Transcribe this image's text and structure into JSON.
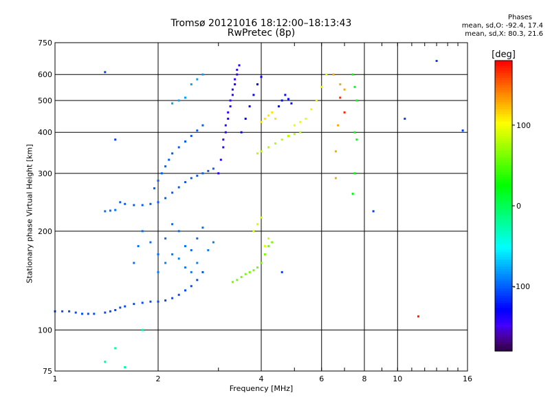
{
  "title_line1": "Tromsø 20121016 18:12:00–18:13:43",
  "title_line2": "RwPretec (8p)",
  "stats": {
    "heading": "Phases",
    "o_line": "mean, sd,O: -92.4, 17.4",
    "x_line": "mean, sd,X:  80.3, 21.6"
  },
  "colors": {
    "grid": "#000000",
    "frame": "#000000"
  },
  "chart_data": {
    "type": "scatter",
    "xlabel": "Frequency [MHz]",
    "ylabel": "Stationary phase Virtual Height [km]",
    "x_scale": "log2",
    "y_scale": "log",
    "xlim": [
      1,
      16
    ],
    "ylim": [
      75,
      750
    ],
    "x_ticks": [
      1,
      2,
      4,
      6,
      8,
      10,
      16
    ],
    "x_tick_labels": [
      "1",
      "2",
      "4",
      "6",
      "8",
      "10",
      "16"
    ],
    "y_ticks": [
      75,
      100,
      200,
      300,
      400,
      500,
      600,
      750
    ],
    "y_tick_labels": [
      "75",
      "100",
      "200",
      "300",
      "400",
      "500",
      "600",
      "750"
    ],
    "colorbar": {
      "label": "[deg]",
      "range": [
        -180,
        180
      ],
      "ticks": [
        -100,
        0,
        100
      ],
      "tick_labels": [
        "-100",
        "0",
        "100"
      ]
    },
    "series": [
      {
        "phase": -105,
        "points": [
          [
            1.0,
            114
          ],
          [
            1.05,
            114
          ],
          [
            1.1,
            114
          ],
          [
            1.15,
            113
          ],
          [
            1.2,
            112
          ],
          [
            1.25,
            112
          ],
          [
            1.3,
            112
          ],
          [
            1.4,
            113
          ],
          [
            1.45,
            114
          ],
          [
            1.5,
            115
          ],
          [
            1.55,
            117
          ],
          [
            1.6,
            118
          ],
          [
            1.7,
            120
          ],
          [
            1.8,
            121
          ],
          [
            1.9,
            122
          ],
          [
            2.0,
            122
          ],
          [
            2.1,
            123
          ],
          [
            2.2,
            125
          ],
          [
            2.3,
            128
          ],
          [
            2.4,
            132
          ],
          [
            2.5,
            136
          ],
          [
            2.6,
            142
          ],
          [
            2.7,
            150
          ]
        ]
      },
      {
        "phase": -100,
        "points": [
          [
            1.55,
            245
          ],
          [
            1.6,
            242
          ],
          [
            1.7,
            240
          ],
          [
            1.8,
            240
          ],
          [
            1.9,
            242
          ],
          [
            2.0,
            245
          ],
          [
            2.1,
            252
          ],
          [
            2.2,
            262
          ],
          [
            2.3,
            272
          ],
          [
            2.4,
            282
          ],
          [
            2.5,
            290
          ],
          [
            2.6,
            295
          ],
          [
            2.7,
            300
          ],
          [
            2.8,
            305
          ],
          [
            2.9,
            310
          ]
        ]
      },
      {
        "phase": -100,
        "points": [
          [
            1.95,
            270
          ],
          [
            2.0,
            285
          ],
          [
            2.05,
            300
          ],
          [
            2.1,
            315
          ],
          [
            2.15,
            330
          ],
          [
            2.2,
            345
          ],
          [
            2.3,
            360
          ],
          [
            2.4,
            375
          ],
          [
            2.5,
            390
          ],
          [
            2.6,
            405
          ],
          [
            2.7,
            420
          ]
        ]
      },
      {
        "phase": -95,
        "points": [
          [
            1.4,
            230
          ],
          [
            1.45,
            231
          ],
          [
            1.5,
            232
          ]
        ]
      },
      {
        "phase": -95,
        "points": [
          [
            1.7,
            160
          ],
          [
            1.75,
            180
          ],
          [
            1.8,
            200
          ],
          [
            1.9,
            185
          ],
          [
            2.0,
            170
          ],
          [
            2.1,
            190
          ],
          [
            2.2,
            210
          ],
          [
            2.3,
            200
          ],
          [
            2.4,
            180
          ],
          [
            2.5,
            175
          ],
          [
            2.6,
            190
          ],
          [
            2.7,
            205
          ]
        ]
      },
      {
        "phase": -90,
        "points": [
          [
            2.0,
            150
          ],
          [
            2.1,
            160
          ],
          [
            2.2,
            170
          ],
          [
            2.3,
            165
          ],
          [
            2.4,
            155
          ],
          [
            2.5,
            150
          ],
          [
            2.6,
            160
          ],
          [
            2.8,
            175
          ],
          [
            2.9,
            185
          ]
        ]
      },
      {
        "phase": -140,
        "points": [
          [
            3.0,
            300
          ],
          [
            3.05,
            330
          ],
          [
            3.1,
            360
          ],
          [
            3.15,
            400
          ],
          [
            3.2,
            440
          ],
          [
            3.25,
            480
          ],
          [
            3.3,
            520
          ],
          [
            3.35,
            560
          ],
          [
            3.4,
            600
          ],
          [
            3.45,
            640
          ]
        ]
      },
      {
        "phase": -145,
        "points": [
          [
            3.1,
            380
          ],
          [
            3.15,
            420
          ],
          [
            3.2,
            460
          ],
          [
            3.25,
            500
          ],
          [
            3.3,
            540
          ],
          [
            3.35,
            580
          ],
          [
            3.4,
            620
          ]
        ]
      },
      {
        "phase": -130,
        "points": [
          [
            3.5,
            400
          ],
          [
            3.6,
            440
          ],
          [
            3.7,
            480
          ],
          [
            3.8,
            520
          ],
          [
            3.9,
            560
          ],
          [
            4.0,
            590
          ]
        ]
      },
      {
        "phase": -125,
        "points": [
          [
            4.5,
            480
          ],
          [
            4.6,
            500
          ],
          [
            4.7,
            520
          ],
          [
            4.8,
            505
          ],
          [
            4.9,
            490
          ]
        ]
      },
      {
        "phase": -80,
        "points": [
          [
            2.2,
            490
          ],
          [
            2.3,
            500
          ],
          [
            2.4,
            510
          ],
          [
            2.5,
            560
          ],
          [
            2.6,
            580
          ],
          [
            2.7,
            600
          ]
        ]
      },
      {
        "phase": 60,
        "points": [
          [
            3.3,
            140
          ],
          [
            3.4,
            142
          ],
          [
            3.5,
            145
          ],
          [
            3.6,
            148
          ],
          [
            3.7,
            150
          ],
          [
            3.8,
            152
          ],
          [
            3.9,
            155
          ],
          [
            4.0,
            160
          ],
          [
            4.1,
            170
          ],
          [
            4.2,
            180
          ],
          [
            4.3,
            185
          ]
        ]
      },
      {
        "phase": 80,
        "points": [
          [
            3.9,
            345
          ],
          [
            4.0,
            350
          ],
          [
            4.2,
            360
          ],
          [
            4.4,
            370
          ],
          [
            4.6,
            380
          ],
          [
            4.8,
            390
          ],
          [
            5.0,
            395
          ],
          [
            5.2,
            400
          ]
        ]
      },
      {
        "phase": 90,
        "points": [
          [
            3.8,
            200
          ],
          [
            3.9,
            210
          ],
          [
            4.0,
            220
          ],
          [
            4.1,
            180
          ],
          [
            4.2,
            190
          ]
        ]
      },
      {
        "phase": 110,
        "points": [
          [
            4.0,
            430
          ],
          [
            4.1,
            440
          ],
          [
            4.2,
            450
          ],
          [
            4.3,
            460
          ],
          [
            4.4,
            440
          ]
        ]
      },
      {
        "phase": 95,
        "points": [
          [
            5.0,
            420
          ],
          [
            5.2,
            430
          ],
          [
            5.4,
            440
          ],
          [
            5.6,
            470
          ],
          [
            5.8,
            500
          ],
          [
            6.0,
            550
          ],
          [
            6.2,
            600
          ]
        ]
      },
      {
        "phase": 130,
        "points": [
          [
            6.5,
            600
          ],
          [
            6.8,
            560
          ],
          [
            7.0,
            540
          ],
          [
            6.6,
            350
          ],
          [
            6.7,
            420
          ],
          [
            6.6,
            290
          ]
        ]
      },
      {
        "phase": 20,
        "points": [
          [
            7.4,
            600
          ],
          [
            7.5,
            550
          ],
          [
            7.6,
            500
          ],
          [
            7.5,
            400
          ],
          [
            7.6,
            380
          ],
          [
            7.5,
            300
          ],
          [
            7.4,
            260
          ]
        ]
      },
      {
        "phase": 170,
        "points": [
          [
            11.5,
            110
          ],
          [
            7.0,
            460
          ],
          [
            6.8,
            510
          ]
        ]
      },
      {
        "phase": -110,
        "points": [
          [
            1.4,
            610
          ],
          [
            1.5,
            380
          ],
          [
            10.5,
            440
          ],
          [
            8.5,
            230
          ],
          [
            13.0,
            660
          ],
          [
            15.5,
            405
          ],
          [
            4.6,
            150
          ]
        ]
      },
      {
        "phase": -20,
        "points": [
          [
            1.4,
            80
          ],
          [
            1.5,
            88
          ],
          [
            1.6,
            77
          ],
          [
            1.8,
            100
          ]
        ]
      }
    ]
  }
}
